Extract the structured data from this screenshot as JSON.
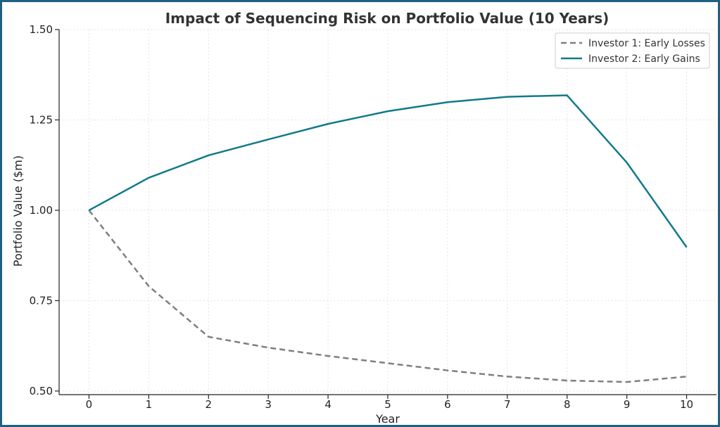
{
  "chart_data": {
    "type": "line",
    "title": "Impact of Sequencing Risk on Portfolio Value (10 Years)",
    "xlabel": "Year",
    "ylabel": "Portfolio Value ($m)",
    "x": [
      0,
      1,
      2,
      3,
      4,
      5,
      6,
      7,
      8,
      9,
      10
    ],
    "xlim": [
      -0.5,
      10.5
    ],
    "ylim": [
      0.49,
      1.5
    ],
    "xticks": [
      "0",
      "1",
      "2",
      "3",
      "4",
      "5",
      "6",
      "7",
      "8",
      "9",
      "10"
    ],
    "yticks": [
      0.5,
      0.75,
      1.0,
      1.25,
      1.5
    ],
    "ytick_labels": [
      "0.50",
      "0.75",
      "1.00",
      "1.25",
      "1.50"
    ],
    "grid": true,
    "legend_position": "top-right",
    "series": [
      {
        "name": "Investor 1: Early Losses",
        "style": "dashed",
        "color": "#7f7f7f",
        "values": [
          1.0,
          0.79,
          0.65,
          0.62,
          0.597,
          0.577,
          0.557,
          0.54,
          0.529,
          0.525,
          0.54
        ]
      },
      {
        "name": "Investor 2: Early Gains",
        "style": "solid",
        "color": "#117a8b",
        "values": [
          1.0,
          1.09,
          1.152,
          1.196,
          1.239,
          1.274,
          1.299,
          1.314,
          1.318,
          1.132,
          0.898
        ]
      }
    ]
  }
}
